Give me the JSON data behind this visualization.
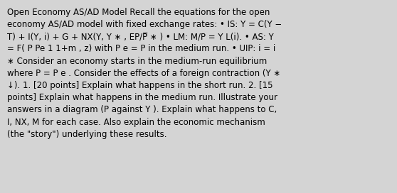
{
  "background_color": "#d4d4d4",
  "text_color": "#000000",
  "figsize": [
    5.58,
    2.72
  ],
  "dpi": 100,
  "font_size": 8.5,
  "font_family": "DejaVu Sans",
  "line1": "Open Economy AS/AD Model Recall the equations for the open",
  "line2": "economy AS/AD model with fixed exchange rates: • IS: Y = C(Y −",
  "line3": "T) + I(Y, i) + G + NX(Y, Y ∗ , EP/P̅ ∗ ) • LM: M/P = Y L(i). • AS: Y",
  "line4": "= F( P Pe 1 1+m , z) with P e = P in the medium run. • UIP: i = i",
  "line5": "∗ Consider an economy starts in the medium-run equilibrium",
  "line6": "where P = P e . Consider the effects of a foreign contraction (Y ∗",
  "line7": "↓). 1. [20 points] Explain what happens in the short run. 2. [15",
  "line8": "points] Explain what happens in the medium run. Illustrate your",
  "line9": "answers in a diagram (P against Y ). Explain what happens to C,",
  "line10": "I, NX, M for each case. Also explain the economic mechanism",
  "line11": "(the \"story\") underlying these results."
}
